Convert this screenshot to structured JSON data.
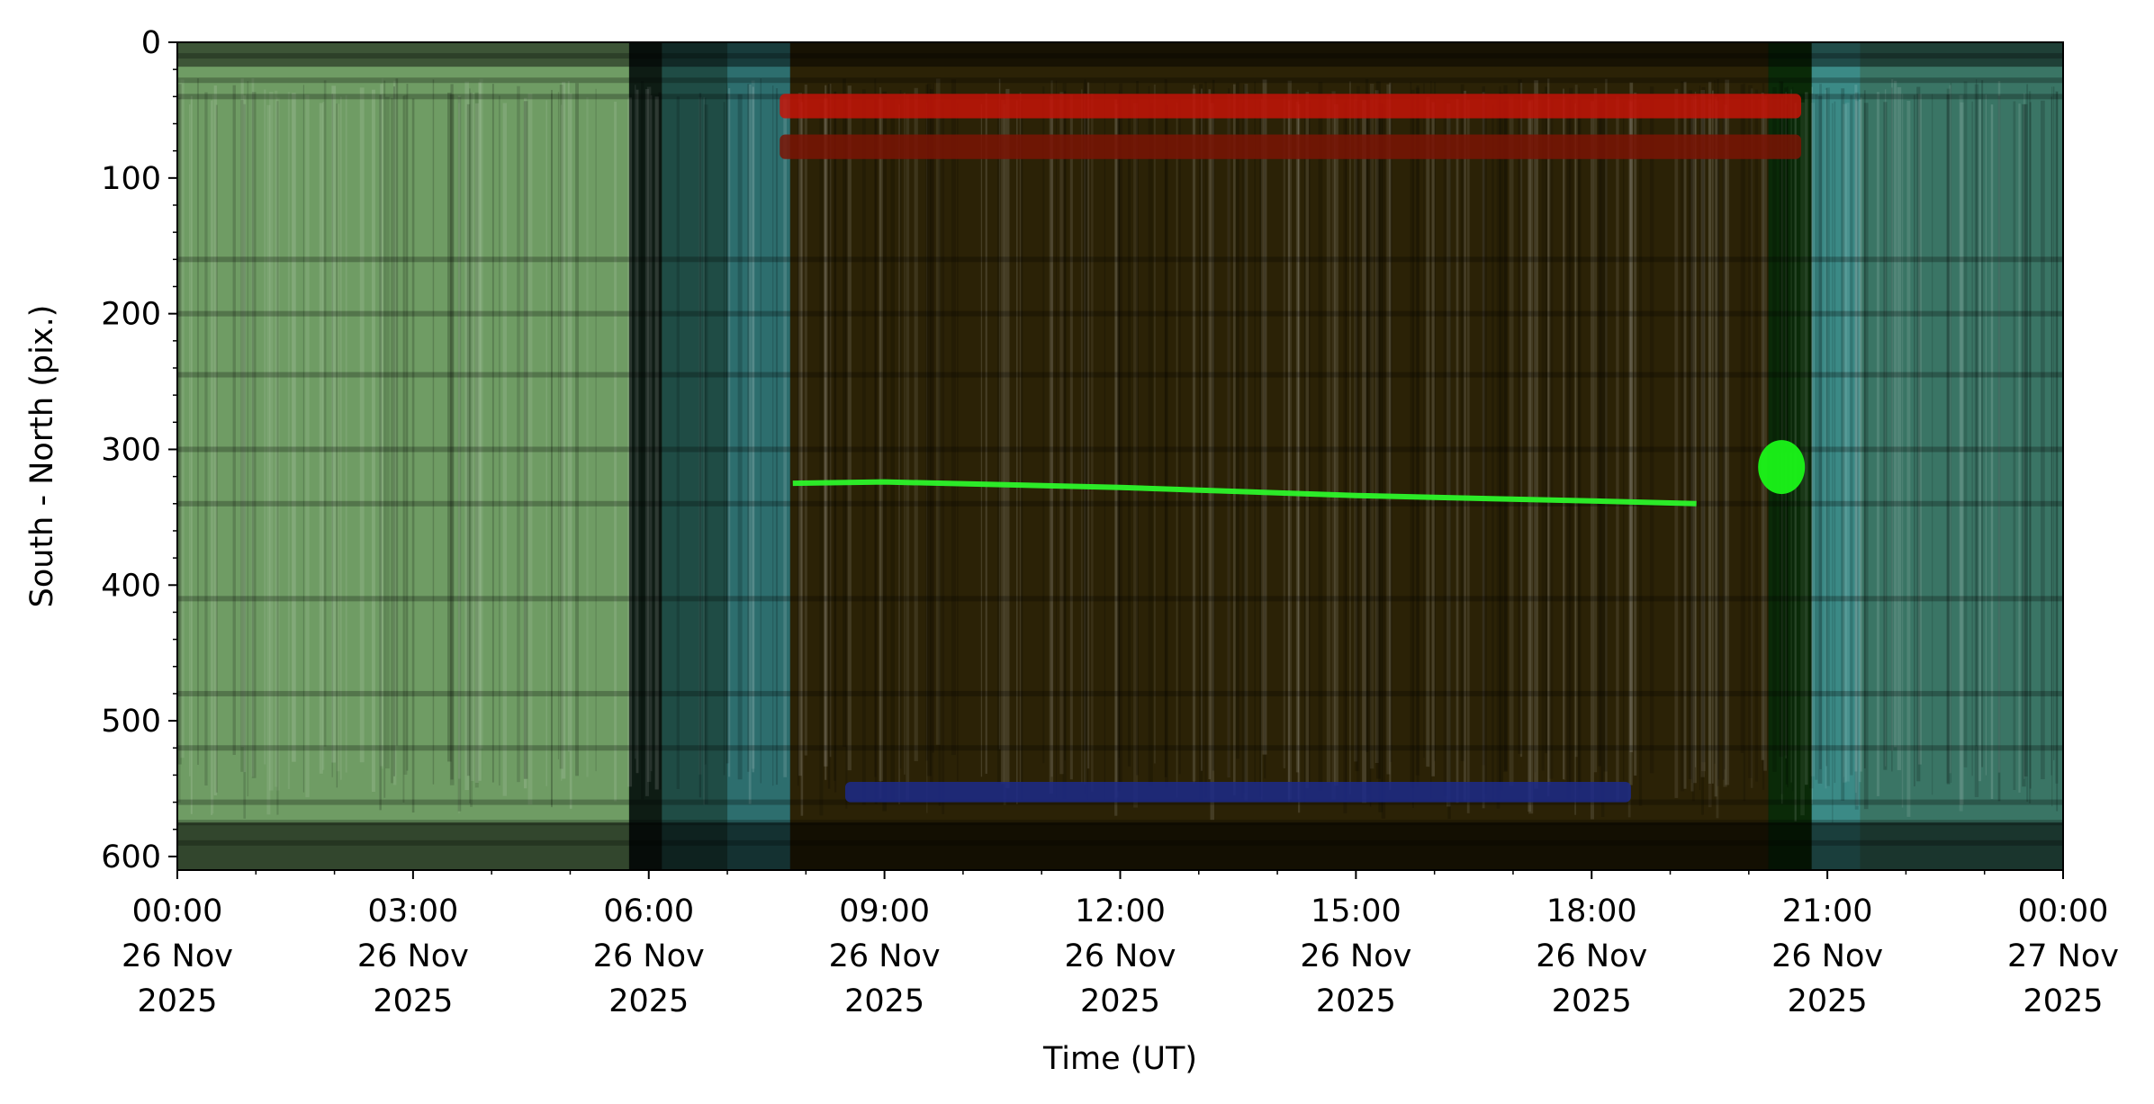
{
  "chart_data": {
    "type": "heatmap",
    "title": "",
    "xlabel": "Time (UT)",
    "ylabel": "South - North (pix.)",
    "x_range": [
      "2025-11-26T00:00",
      "2025-11-27T00:00"
    ],
    "y_range": [
      0,
      610
    ],
    "y_inverted": true,
    "x_ticks": [
      {
        "time": "00:00",
        "date": "26 Nov",
        "year": "2025"
      },
      {
        "time": "03:00",
        "date": "26 Nov",
        "year": "2025"
      },
      {
        "time": "06:00",
        "date": "26 Nov",
        "year": "2025"
      },
      {
        "time": "09:00",
        "date": "26 Nov",
        "year": "2025"
      },
      {
        "time": "12:00",
        "date": "26 Nov",
        "year": "2025"
      },
      {
        "time": "15:00",
        "date": "26 Nov",
        "year": "2025"
      },
      {
        "time": "18:00",
        "date": "26 Nov",
        "year": "2025"
      },
      {
        "time": "21:00",
        "date": "26 Nov",
        "year": "2025"
      },
      {
        "time": "00:00",
        "date": "27 Nov",
        "year": "2025"
      }
    ],
    "y_ticks": [
      "0",
      "100",
      "200",
      "300",
      "400",
      "500",
      "600"
    ],
    "grid": false,
    "legend": "none",
    "bands": [
      {
        "start": "00:00",
        "end": "05:45",
        "color": "#6f9c64"
      },
      {
        "start": "05:45",
        "end": "06:10",
        "color": "#0e1c14"
      },
      {
        "start": "06:10",
        "end": "07:00",
        "color": "#1f4c45"
      },
      {
        "start": "07:00",
        "end": "07:48",
        "color": "#2d6e6e"
      },
      {
        "start": "07:48",
        "end": "20:15",
        "color": "#2b2206"
      },
      {
        "start": "20:15",
        "end": "20:48",
        "color": "#0a2a08"
      },
      {
        "start": "20:48",
        "end": "21:25",
        "color": "#3b8a86"
      },
      {
        "start": "21:25",
        "end": "24:00",
        "color": "#3a7565"
      }
    ],
    "features": [
      {
        "name": "red-strip-upper",
        "start": "07:40",
        "end": "20:40",
        "y": [
          38,
          56
        ],
        "color": "#c41408"
      },
      {
        "name": "red-strip-lower",
        "start": "07:40",
        "end": "20:40",
        "y": [
          68,
          86
        ],
        "color": "#7a1405"
      },
      {
        "name": "blue-strip",
        "start": "08:30",
        "end": "18:30",
        "y": [
          545,
          560
        ],
        "color": "#1c2a8a"
      },
      {
        "name": "green-streak",
        "points": [
          [
            "07:50",
            325
          ],
          [
            "09:00",
            324
          ],
          [
            "12:00",
            328
          ],
          [
            "15:00",
            334
          ],
          [
            "18:00",
            338
          ],
          [
            "19:20",
            340
          ]
        ],
        "color": "#2cf52a"
      },
      {
        "name": "green-blob",
        "time": "20:25",
        "y": 313,
        "color": "#1af518"
      }
    ]
  }
}
